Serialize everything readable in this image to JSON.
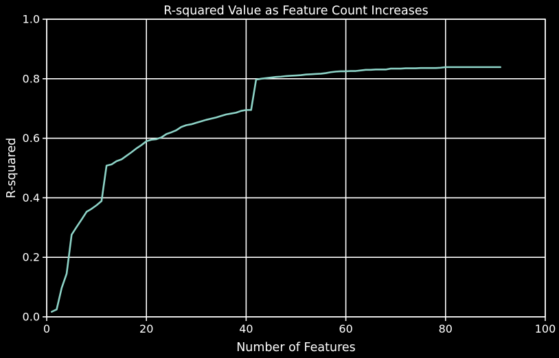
{
  "chart_data": {
    "type": "line",
    "title": "R-squared Value as Feature Count Increases",
    "xlabel": "Number of Features",
    "ylabel": "R-squared",
    "xlim": [
      0,
      100
    ],
    "ylim": [
      0,
      1.0
    ],
    "x_ticks": [
      "0",
      "20",
      "40",
      "60",
      "80",
      "100"
    ],
    "y_ticks": [
      "0.0",
      "0.2",
      "0.4",
      "0.6",
      "0.8",
      "1.0"
    ],
    "grid": true,
    "series": [
      {
        "color": "#8dd3c7",
        "x": [
          1,
          2,
          3,
          4,
          5,
          6,
          7,
          8,
          9,
          10,
          11,
          12,
          13,
          14,
          15,
          16,
          17,
          18,
          19,
          20,
          21,
          22,
          23,
          24,
          25,
          26,
          27,
          28,
          29,
          30,
          31,
          32,
          33,
          34,
          35,
          36,
          37,
          38,
          39,
          40,
          41,
          42,
          43,
          44,
          45,
          46,
          47,
          48,
          49,
          50,
          51,
          52,
          53,
          54,
          55,
          56,
          57,
          58,
          59,
          60,
          61,
          62,
          63,
          64,
          65,
          66,
          67,
          68,
          69,
          70,
          71,
          72,
          73,
          74,
          75,
          76,
          77,
          78,
          79,
          80,
          81,
          82,
          83,
          84,
          85,
          86,
          87,
          88,
          89,
          90,
          91
        ],
        "y": [
          0.017,
          0.025,
          0.097,
          0.145,
          0.276,
          0.302,
          0.327,
          0.353,
          0.363,
          0.375,
          0.389,
          0.508,
          0.512,
          0.523,
          0.529,
          0.541,
          0.553,
          0.566,
          0.577,
          0.59,
          0.595,
          0.597,
          0.603,
          0.614,
          0.62,
          0.627,
          0.638,
          0.644,
          0.647,
          0.652,
          0.657,
          0.662,
          0.666,
          0.67,
          0.675,
          0.68,
          0.683,
          0.686,
          0.692,
          0.695,
          0.695,
          0.797,
          0.8,
          0.802,
          0.804,
          0.806,
          0.807,
          0.809,
          0.81,
          0.811,
          0.812,
          0.814,
          0.815,
          0.816,
          0.817,
          0.819,
          0.822,
          0.824,
          0.825,
          0.825,
          0.826,
          0.826,
          0.828,
          0.83,
          0.83,
          0.831,
          0.831,
          0.831,
          0.834,
          0.834,
          0.834,
          0.835,
          0.835,
          0.835,
          0.836,
          0.836,
          0.836,
          0.836,
          0.837,
          0.839,
          0.839,
          0.839,
          0.839,
          0.839,
          0.839,
          0.839,
          0.839,
          0.839,
          0.839,
          0.839,
          0.839
        ]
      }
    ]
  }
}
